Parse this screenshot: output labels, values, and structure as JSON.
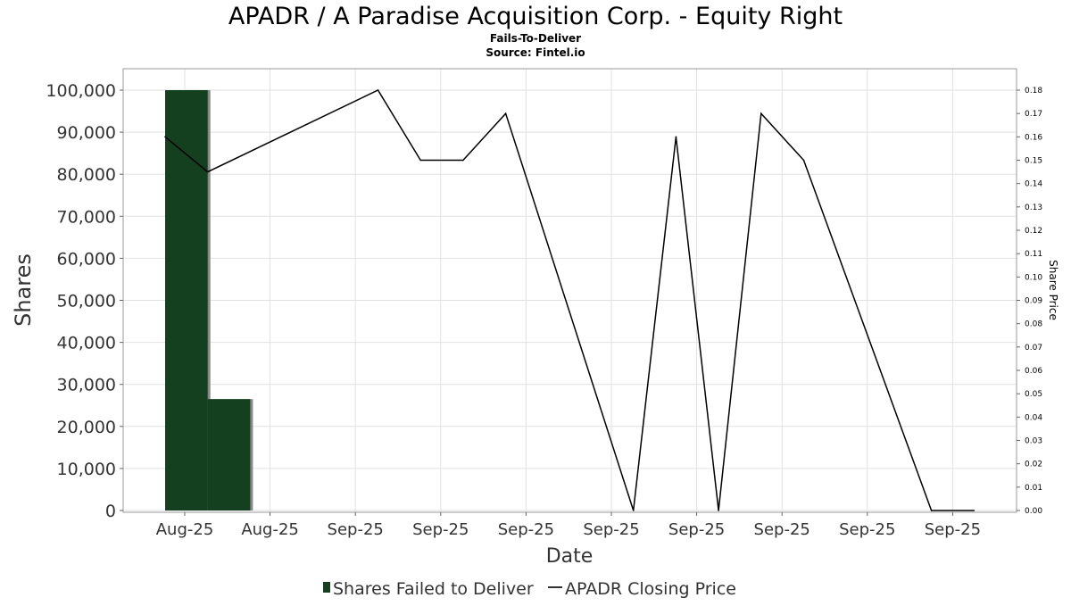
{
  "title": "APADR / A Paradise Acquisition Corp. - Equity Right",
  "subtitle_lines": [
    "Fails-To-Deliver",
    "Source: Fintel.io"
  ],
  "chart_data": {
    "type": "bar",
    "xlabel": "Date",
    "ylabel": "Shares",
    "y2label": "Share Price",
    "ylim": [
      0,
      100000
    ],
    "y2lim": [
      0,
      0.18
    ],
    "grid": true,
    "legend_position": "bottom-center",
    "x_tick_labels": [
      "Aug-25",
      "Aug-25",
      "Sep-25",
      "Sep-25",
      "Sep-25",
      "Sep-25",
      "Sep-25",
      "Sep-25",
      "Sep-25",
      "Sep-25"
    ],
    "y_tick_labels": [
      "0",
      "10,000",
      "20,000",
      "30,000",
      "40,000",
      "50,000",
      "60,000",
      "70,000",
      "80,000",
      "90,000",
      "100,000"
    ],
    "y2_tick_labels": [
      "0.00",
      "0.01",
      "0.02",
      "0.03",
      "0.04",
      "0.05",
      "0.06",
      "0.07",
      "0.08",
      "0.09",
      "0.10",
      "0.11",
      "0.12",
      "0.13",
      "0.14",
      "0.15",
      "0.16",
      "0.17",
      "0.18"
    ],
    "series": [
      {
        "name": "Shares Failed to Deliver",
        "type": "bar",
        "color": "#14401f",
        "points": [
          {
            "x": 0,
            "y": 100000
          },
          {
            "x": 1,
            "y": 26500
          }
        ]
      },
      {
        "name": "APADR Closing Price",
        "type": "line",
        "color": "#000000",
        "points": [
          {
            "x": 0,
            "y": 0.16
          },
          {
            "x": 1,
            "y": 0.145
          },
          {
            "x": 5,
            "y": 0.18
          },
          {
            "x": 6,
            "y": 0.15
          },
          {
            "x": 7,
            "y": 0.15
          },
          {
            "x": 8,
            "y": 0.17
          },
          {
            "x": 11,
            "y": 0.0
          },
          {
            "x": 12,
            "y": 0.16
          },
          {
            "x": 13,
            "y": 0.0
          },
          {
            "x": 14,
            "y": 0.17
          },
          {
            "x": 15,
            "y": 0.15
          },
          {
            "x": 18,
            "y": 0.0
          },
          {
            "x": 19,
            "y": 0.0
          }
        ]
      }
    ]
  },
  "legend": {
    "bar_label": "Shares Failed to Deliver",
    "line_label": "APADR Closing Price"
  }
}
